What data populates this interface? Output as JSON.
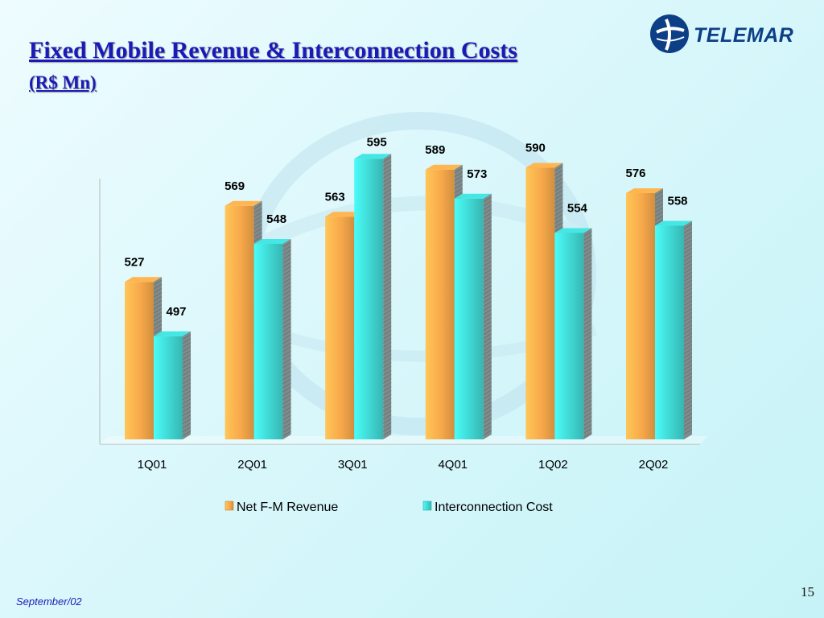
{
  "slide": {
    "title": "Fixed Mobile Revenue & Interconnection Costs",
    "subtitle": "(R$ Mn)",
    "logo_text": "TELEMAR",
    "page_number": "15",
    "footer_date": "September/02"
  },
  "colors": {
    "title": "#1a1ab8",
    "series_1": "#f7a84a",
    "series_2": "#3fd6d2",
    "logo": "#0d3f86"
  },
  "chart_data": {
    "type": "bar",
    "title": "",
    "xlabel": "",
    "ylabel": "",
    "categories": [
      "1Q01",
      "2Q01",
      "3Q01",
      "4Q01",
      "1Q02",
      "2Q02"
    ],
    "series": [
      {
        "name": "Net F-M Revenue",
        "values": [
          527,
          569,
          563,
          589,
          590,
          576
        ]
      },
      {
        "name": "Interconnection Cost",
        "values": [
          497,
          548,
          595,
          573,
          554,
          558
        ]
      }
    ],
    "ylim": [
      440,
      600
    ],
    "grid": false,
    "legend": "bottom",
    "data_labels": true,
    "style": "3d-columns"
  }
}
